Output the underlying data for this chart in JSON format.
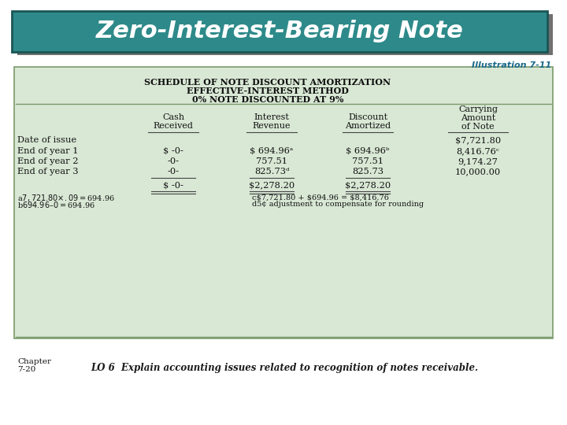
{
  "title": "Zero-Interest-Bearing Note",
  "title_bg_color": "#2E8A8A",
  "title_text_color": "#FFFFFF",
  "illustration_label": "Illustration 7-11",
  "table_bg_color": "#D9E8D5",
  "table_border_color": "#7A9A6A",
  "header_line1": "Schedule of Note Discount Amortization",
  "header_line2": "Effective-Interest Method",
  "header_line3": "0% Note Discounted at 9%",
  "footnote1a": "a$7,721.80 × .09 = $694.96",
  "footnote1b": "b$694.96 – 0 = $694.96",
  "footnote2a": "c$7,721.80 + $694.96 = $8,416.76",
  "footnote2b": "d5¢ adjustment to compensate for rounding",
  "lo_text": "LO 6  Explain accounting issues related to recognition of notes receivable.",
  "bg_color": "#FFFFFF",
  "dark_shadow": "#333333",
  "teal_label": "#1A6A8A"
}
